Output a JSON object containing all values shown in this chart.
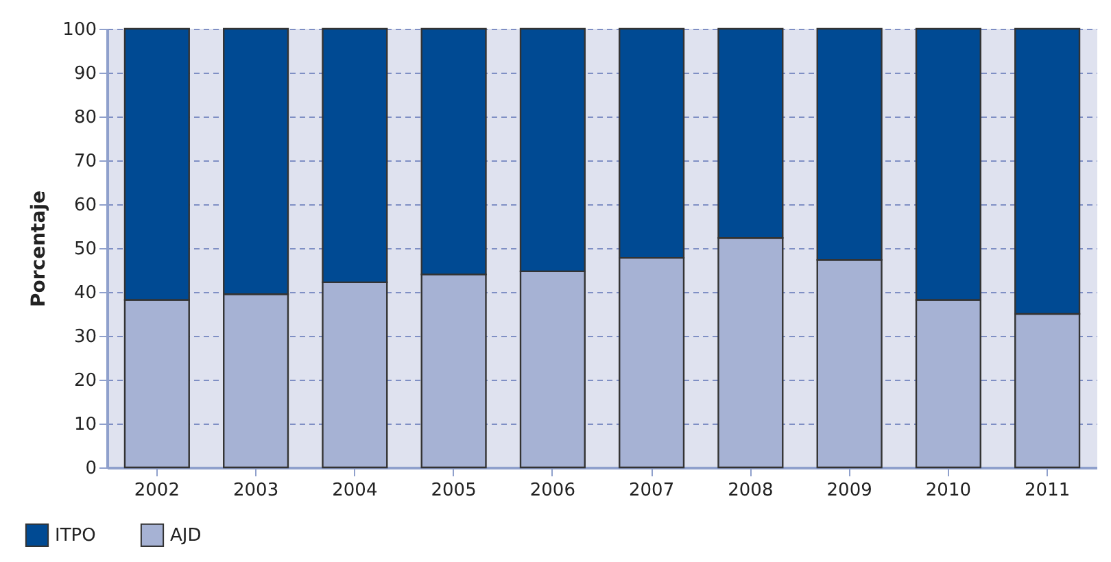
{
  "chart_data": {
    "type": "bar",
    "stacked": true,
    "ylabel": "Porcentaje",
    "categories": [
      "2002",
      "2003",
      "2004",
      "2005",
      "2006",
      "2007",
      "2008",
      "2009",
      "2010",
      "2011"
    ],
    "series": [
      {
        "name": "AJD",
        "color": "#a6b2d4",
        "values": [
          38.2,
          39.5,
          42.2,
          44,
          44.7,
          47.8,
          52.3,
          47.3,
          38.2,
          35
        ]
      },
      {
        "name": "ITPO",
        "color": "#004a93",
        "values": [
          61.8,
          60.5,
          57.8,
          56,
          55.3,
          52.2,
          47.7,
          52.7,
          61.8,
          65
        ]
      }
    ],
    "ylim": [
      0,
      100
    ],
    "yticks": [
      0,
      10,
      20,
      30,
      40,
      50,
      60,
      70,
      80,
      90,
      100
    ],
    "grid": "y",
    "legend": "bottom left"
  }
}
